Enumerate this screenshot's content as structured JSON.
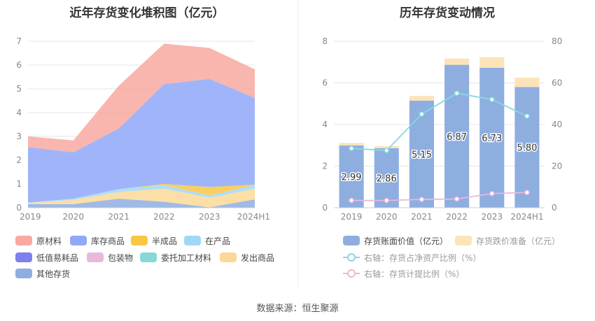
{
  "left_chart": {
    "title": "近年存货变化堆积图（亿元）",
    "legend": [
      {
        "name": "原材料",
        "color": "#f8a9a0"
      },
      {
        "name": "库存商品",
        "color": "#8fa8f8"
      },
      {
        "name": "半成品",
        "color": "#f9c744"
      },
      {
        "name": "在产品",
        "color": "#9fd8f8"
      },
      {
        "name": "低值易耗品",
        "color": "#7f7ff0"
      },
      {
        "name": "包装物",
        "color": "#e8b8dc"
      },
      {
        "name": "委托加工材料",
        "color": "#88d8d8"
      },
      {
        "name": "发出商品",
        "color": "#fcd898"
      },
      {
        "name": "其他存货",
        "color": "#8eaee0"
      }
    ]
  },
  "right_chart": {
    "title": "历年存货变动情况",
    "legend": [
      {
        "name": "存货账面价值（亿元）",
        "color": "#8eaee0",
        "kind": "bar"
      },
      {
        "name": "存货跌价准备（亿元）",
        "color": "#fde3b8",
        "kind": "bar"
      },
      {
        "name": "右轴：存货占净资产比例（%）",
        "color": "#88d8e0",
        "kind": "line"
      },
      {
        "name": "右轴：存货计提比例（%）",
        "color": "#e8b8dc",
        "kind": "line"
      }
    ]
  },
  "source": "数据来源：恒生聚源",
  "chart_data": [
    {
      "type": "area",
      "stacked": true,
      "title": "近年存货变化堆积图（亿元）",
      "categories": [
        "2019",
        "2020",
        "2021",
        "2022",
        "2023",
        "2024H1"
      ],
      "ylim": [
        0,
        7
      ],
      "yticks": [
        "0",
        "1",
        "2",
        "3",
        "4",
        "5",
        "6",
        "7"
      ],
      "grid": true,
      "series": [
        {
          "name": "其他存货",
          "color": "#8eaee0",
          "values": [
            0.15,
            0.15,
            0.38,
            0.25,
            0.02,
            0.35
          ]
        },
        {
          "name": "发出商品",
          "color": "#fcd898",
          "values": [
            0.05,
            0.18,
            0.28,
            0.55,
            0.4,
            0.45
          ]
        },
        {
          "name": "委托加工材料",
          "color": "#88d8d8",
          "values": [
            0.0,
            0.0,
            0.0,
            0.0,
            0.0,
            0.0
          ]
        },
        {
          "name": "包装物",
          "color": "#e8b8dc",
          "values": [
            0.0,
            0.0,
            0.0,
            0.0,
            0.0,
            0.0
          ]
        },
        {
          "name": "低值易耗品",
          "color": "#7f7ff0",
          "values": [
            0.0,
            0.0,
            0.0,
            0.0,
            0.0,
            0.0
          ]
        },
        {
          "name": "在产品",
          "color": "#9fd8f8",
          "values": [
            0.02,
            0.05,
            0.12,
            0.15,
            0.1,
            0.15
          ]
        },
        {
          "name": "半成品",
          "color": "#f9c744",
          "values": [
            0.0,
            0.0,
            0.0,
            0.05,
            0.35,
            0.02
          ]
        },
        {
          "name": "库存商品",
          "color": "#8fa8f8",
          "values": [
            2.33,
            1.95,
            2.55,
            4.2,
            4.55,
            3.65
          ]
        },
        {
          "name": "原材料",
          "color": "#f8a9a0",
          "values": [
            0.45,
            0.5,
            1.8,
            1.7,
            1.3,
            1.2
          ]
        }
      ]
    },
    {
      "type": "bar",
      "stacked": true,
      "title": "历年存货变动情况",
      "categories": [
        "2019",
        "2020",
        "2021",
        "2022",
        "2023",
        "2024H1"
      ],
      "ylim": [
        0,
        8
      ],
      "yticks": [
        "0",
        "2",
        "4",
        "6",
        "8"
      ],
      "y2lim": [
        0,
        80
      ],
      "y2ticks": [
        "0",
        "20",
        "40",
        "60",
        "80"
      ],
      "grid": true,
      "series": [
        {
          "name": "存货账面价值（亿元）",
          "color": "#8eaee0",
          "values": [
            2.99,
            2.86,
            5.15,
            6.87,
            6.73,
            5.8
          ],
          "labels": [
            "2.99",
            "2.86",
            "5.15",
            "6.87",
            "6.73",
            "5.80"
          ]
        },
        {
          "name": "存货跌价准备（亿元）",
          "color": "#fde3b8",
          "values": [
            0.12,
            0.1,
            0.22,
            0.3,
            0.5,
            0.45
          ]
        },
        {
          "name": "右轴：存货占净资产比例（%）",
          "type": "line",
          "axis": "right",
          "color": "#88d8e0",
          "values": [
            28.5,
            27.5,
            45.0,
            55.0,
            52.0,
            44.0
          ]
        },
        {
          "name": "右轴：存货计提比例（%）",
          "type": "line",
          "axis": "right",
          "color": "#e8b8dc",
          "values": [
            3.5,
            3.5,
            4.0,
            4.2,
            6.8,
            7.3
          ]
        }
      ]
    }
  ]
}
